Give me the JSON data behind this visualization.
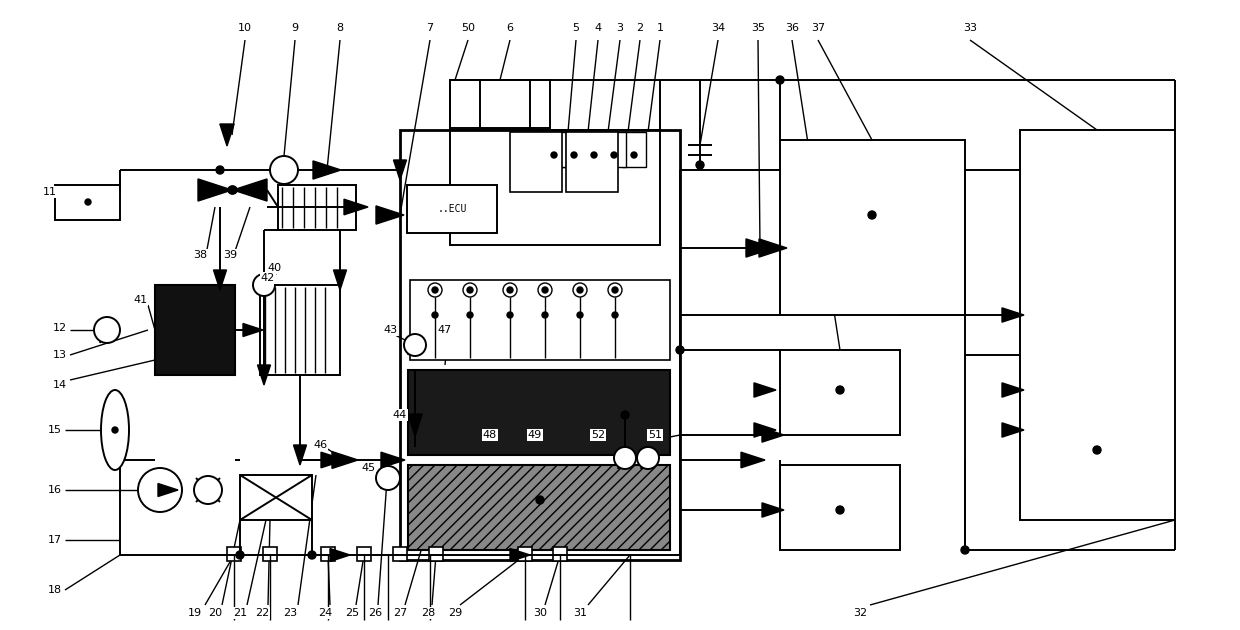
{
  "bg_color": "#ffffff",
  "lc": "#000000",
  "fig_width": 12.4,
  "fig_height": 6.3,
  "dpi": 100
}
